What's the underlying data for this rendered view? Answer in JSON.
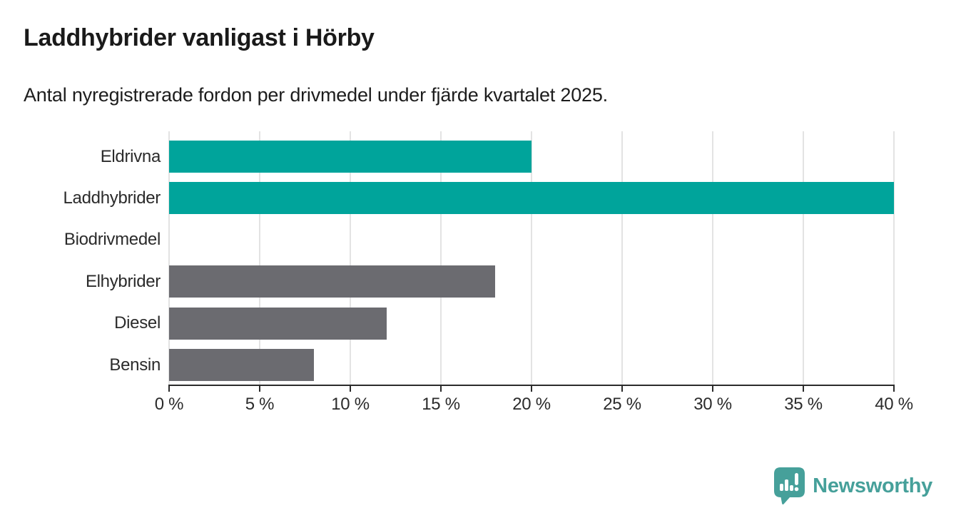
{
  "header": {
    "title": "Laddhybrider vanligast i Hörby",
    "subtitle": "Antal nyregistrerade fordon per drivmedel under fjärde kvartalet 2025."
  },
  "chart_data": {
    "type": "bar",
    "orientation": "horizontal",
    "title": "Laddhybrider vanligast i Hörby",
    "subtitle": "Antal nyregistrerade fordon per drivmedel under fjärde kvartalet 2025.",
    "categories": [
      "Eldrivna",
      "Laddhybrider",
      "Biodrivmedel",
      "Elhybrider",
      "Diesel",
      "Bensin"
    ],
    "values": [
      20,
      40,
      0,
      18,
      12,
      8
    ],
    "unit": "%",
    "bar_colors": [
      "#00a49b",
      "#00a49b",
      "#6b6b70",
      "#6b6b70",
      "#6b6b70",
      "#6b6b70"
    ],
    "highlight_color": "#00a49b",
    "default_color": "#6b6b70",
    "xlim": [
      0,
      40
    ],
    "x_ticks": [
      0,
      5,
      10,
      15,
      20,
      25,
      30,
      35,
      40
    ],
    "x_tick_labels": [
      "0 %",
      "5 %",
      "10 %",
      "15 %",
      "20 %",
      "25 %",
      "30 %",
      "35 %",
      "40 %"
    ],
    "xlabel": "",
    "ylabel": "",
    "grid": true,
    "gridline_color": "#e3e3e3",
    "axis_color": "#2b2b2b",
    "legend": "none"
  },
  "footer": {
    "brand": "Newsworthy",
    "brand_color": "#46a09a",
    "logo_icon": "bar-chart-speech-bubble"
  }
}
